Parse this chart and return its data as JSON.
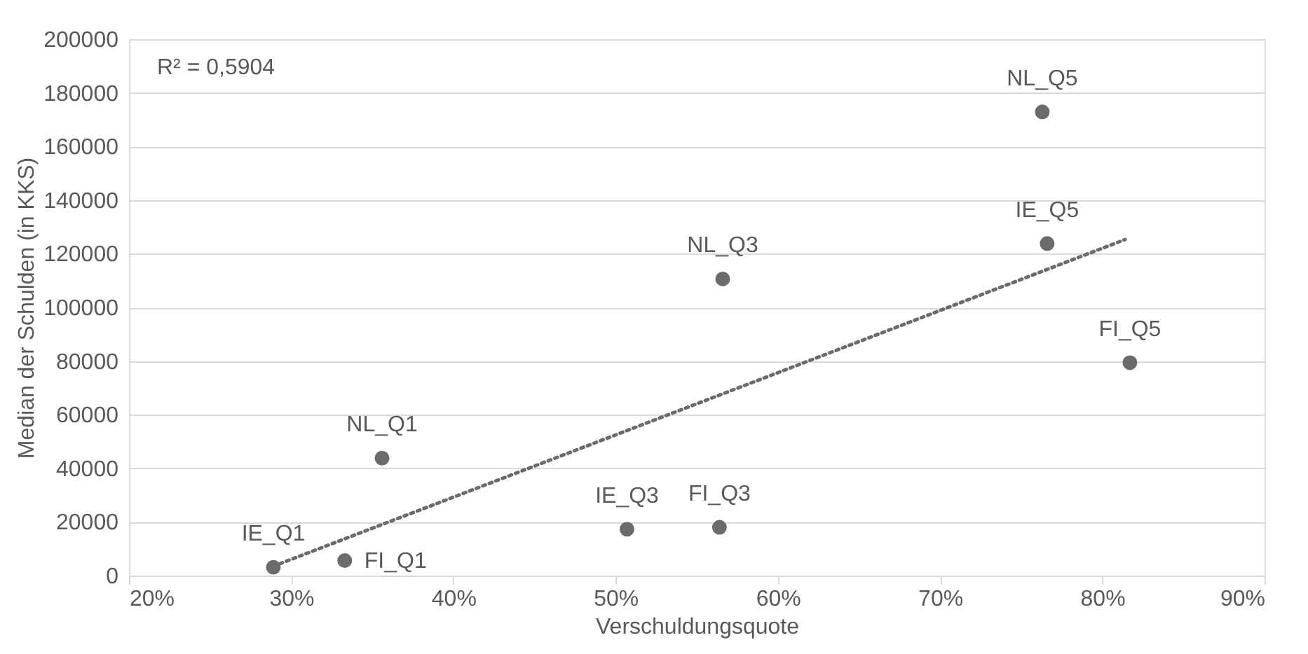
{
  "chart_data": {
    "type": "scatter",
    "xlabel": "Verschuldungsquote",
    "ylabel": "Median der Schulden (in KKS)",
    "xlim": [
      0.2,
      0.9
    ],
    "xticks": [
      {
        "value": 0.2,
        "label": "20%"
      },
      {
        "value": 0.3,
        "label": "30%"
      },
      {
        "value": 0.4,
        "label": "40%"
      },
      {
        "value": 0.5,
        "label": "50%"
      },
      {
        "value": 0.6,
        "label": "60%"
      },
      {
        "value": 0.7,
        "label": "70%"
      },
      {
        "value": 0.8,
        "label": "80%"
      },
      {
        "value": 0.9,
        "label": "90%"
      }
    ],
    "ylim": [
      0,
      200000
    ],
    "yticks": [
      0,
      20000,
      40000,
      60000,
      80000,
      100000,
      120000,
      140000,
      160000,
      180000,
      200000
    ],
    "grid": "y",
    "series": [
      {
        "type": "scatter",
        "marker": "circle",
        "color": "#6b6b6b",
        "x": [
          0.289,
          0.333,
          0.356,
          0.507,
          0.564,
          0.566,
          0.763,
          0.766,
          0.817
        ],
        "values": [
          3100,
          5600,
          43800,
          17300,
          18000,
          110600,
          172900,
          123800,
          79400
        ]
      },
      {
        "type": "line",
        "marker": "none",
        "line_style": "dotted",
        "color": "#6b6b6b",
        "x": [
          0.289,
          0.814
        ],
        "values": [
          3500,
          125300
        ]
      }
    ],
    "annotations": [
      "R² = 0,5904",
      {
        "text": "IE_Q1",
        "x": 0.289,
        "y": 3100
      },
      {
        "text": "FI_Q1",
        "x": 0.333,
        "y": 5600
      },
      {
        "text": "NL_Q1",
        "x": 0.356,
        "y": 43800
      },
      {
        "text": "IE_Q3",
        "x": 0.507,
        "y": 17300
      },
      {
        "text": "FI_Q3",
        "x": 0.564,
        "y": 18000
      },
      {
        "text": "NL_Q3",
        "x": 0.566,
        "y": 110600
      },
      {
        "text": "NL_Q5",
        "x": 0.763,
        "y": 172900
      },
      {
        "text": "IE_Q5",
        "x": 0.766,
        "y": 123800
      },
      {
        "text": "FI_Q5",
        "x": 0.817,
        "y": 79400
      }
    ]
  }
}
